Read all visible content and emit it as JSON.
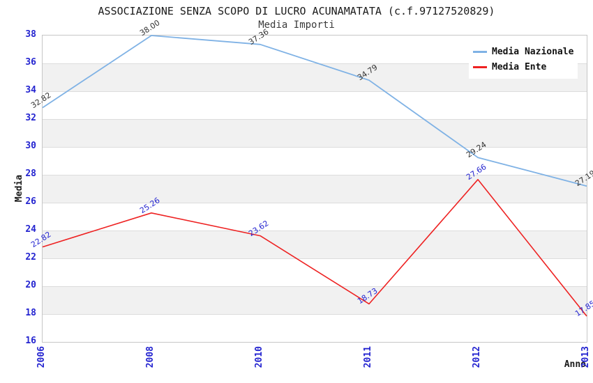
{
  "header": {
    "title": "ASSOCIAZIONE SENZA SCOPO DI LUCRO ACUNAMATATA (c.f.97127520829)",
    "subtitle": "Media Importi"
  },
  "chart_data": {
    "type": "line",
    "title": "ASSOCIAZIONE SENZA SCOPO DI LUCRO ACUNAMATATA (c.f.97127520829)",
    "subtitle": "Media Importi",
    "xlabel": "Anno",
    "ylabel": "Media",
    "categories": [
      "2006",
      "2008",
      "2010",
      "2011",
      "2012",
      "2013"
    ],
    "series": [
      {
        "name": "Media Nazionale",
        "color": "#7fb2e5",
        "label_color": "#333333",
        "stroke_width": 1.8,
        "values": [
          32.82,
          38.0,
          37.36,
          34.79,
          29.24,
          27.19
        ]
      },
      {
        "name": "Media Ente",
        "color": "#ee2222",
        "label_color": "#2424d0",
        "stroke_width": 1.6,
        "values": [
          22.82,
          25.26,
          23.62,
          18.73,
          27.66,
          17.85
        ]
      }
    ],
    "ylim": [
      16,
      38
    ],
    "ytick_step": 2,
    "yticks": [
      16,
      18,
      20,
      22,
      24,
      26,
      28,
      30,
      32,
      34,
      36,
      38
    ],
    "value_label_decimals": 2,
    "grid": "alternating-horizontal-bands",
    "legend_position": "top-right",
    "colors": {
      "tick_label": "#2424d0",
      "band_fill": "#f1f1f1",
      "gridline": "#dcdcdc",
      "plot_border": "#c6c6c6"
    }
  }
}
